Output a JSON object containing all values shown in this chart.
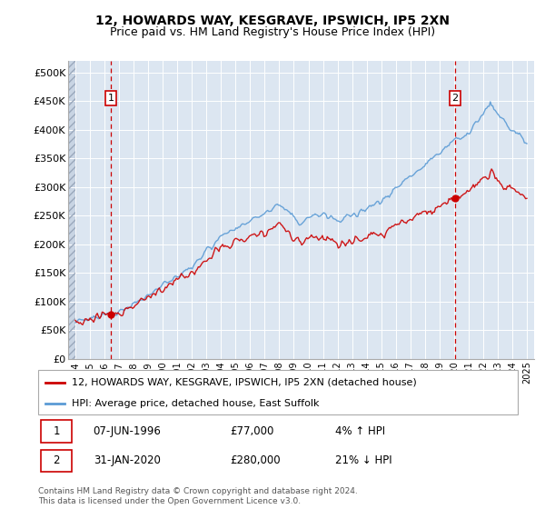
{
  "title": "12, HOWARDS WAY, KESGRAVE, IPSWICH, IP5 2XN",
  "subtitle": "Price paid vs. HM Land Registry's House Price Index (HPI)",
  "xlim_start": 1993.5,
  "xlim_end": 2025.5,
  "ylim": [
    0,
    520000
  ],
  "yticks": [
    0,
    50000,
    100000,
    150000,
    200000,
    250000,
    300000,
    350000,
    400000,
    450000,
    500000
  ],
  "ytick_labels": [
    "£0",
    "£50K",
    "£100K",
    "£150K",
    "£200K",
    "£250K",
    "£300K",
    "£350K",
    "£400K",
    "£450K",
    "£500K"
  ],
  "background_color": "#ffffff",
  "plot_bg_color": "#dce6f1",
  "grid_color": "#ffffff",
  "sale1_x": 1996.44,
  "sale1_y": 77000,
  "sale2_x": 2020.08,
  "sale2_y": 280000,
  "legend_line1": "12, HOWARDS WAY, KESGRAVE, IPSWICH, IP5 2XN (detached house)",
  "legend_line2": "HPI: Average price, detached house, East Suffolk",
  "sale1_date": "07-JUN-1996",
  "sale1_price": "£77,000",
  "sale1_hpi": "4% ↑ HPI",
  "sale2_date": "31-JAN-2020",
  "sale2_price": "£280,000",
  "sale2_hpi": "21% ↓ HPI",
  "footer": "Contains HM Land Registry data © Crown copyright and database right 2024.\nThis data is licensed under the Open Government Licence v3.0.",
  "red_line_color": "#cc0000",
  "blue_line_color": "#5b9bd5",
  "sale_dot_color": "#cc0000",
  "vline_color": "#cc0000",
  "title_fontsize": 10,
  "subtitle_fontsize": 9
}
